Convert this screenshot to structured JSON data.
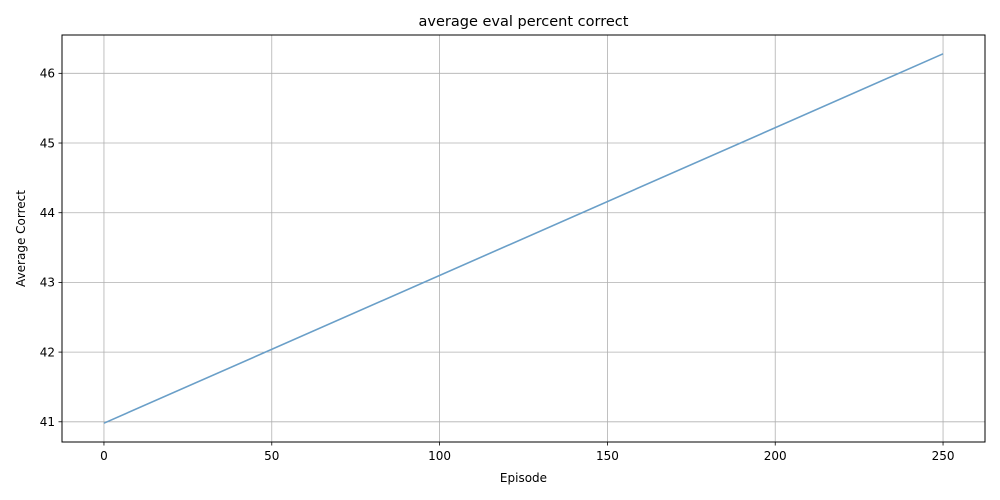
{
  "chart_data": {
    "type": "line",
    "title": "average eval percent correct",
    "xlabel": "Episode",
    "ylabel": "Average Correct",
    "xlim": [
      -12.5,
      262.5
    ],
    "ylim": [
      40.71,
      46.55
    ],
    "xticks": [
      0,
      50,
      100,
      150,
      200,
      250
    ],
    "yticks": [
      41,
      42,
      43,
      44,
      45,
      46
    ],
    "grid": true,
    "legend": "none",
    "series": [
      {
        "color": "#6a9fc8",
        "x": [
          0,
          250
        ],
        "y": [
          40.98,
          46.28
        ]
      }
    ]
  }
}
